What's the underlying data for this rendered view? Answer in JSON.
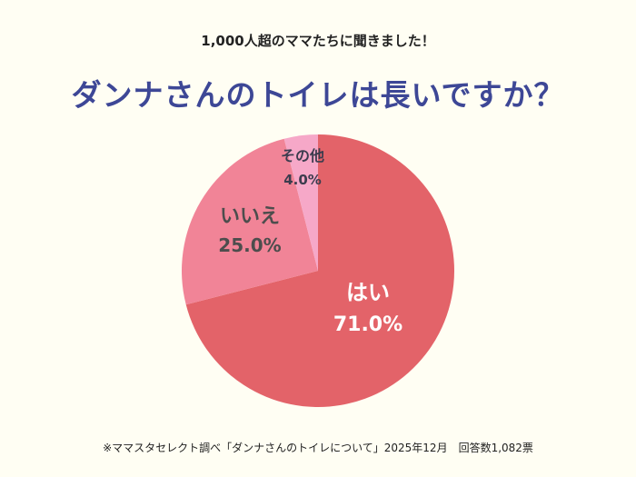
{
  "subtitle": "1,000人超のママたちに聞きました！",
  "chart_data": {
    "type": "pie",
    "title": "ダンナさんのトイレは長いですか？",
    "slices": [
      {
        "label": "はい",
        "value": 71.0,
        "value_label": "71.0%",
        "color": "#e36369",
        "text_color": "#ffffff"
      },
      {
        "label": "いいえ",
        "value": 25.0,
        "value_label": "25.0%",
        "color": "#f18497",
        "text_color": "#4d4d4d"
      },
      {
        "label": "その他",
        "value": 4.0,
        "value_label": "4.0%",
        "color": "#f6a8c8",
        "text_color": "#3c3c4e"
      }
    ],
    "start": "top",
    "direction": "clockwise"
  },
  "footnote": "※ママスタセレクト調べ「ダンナさんのトイレについて」2025年12月　回答数1,082票"
}
